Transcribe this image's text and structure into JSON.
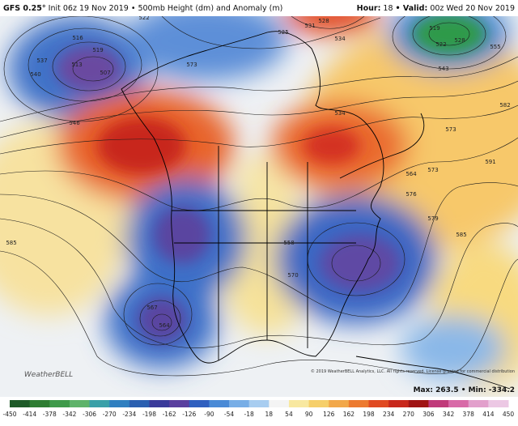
{
  "header": {
    "model": "GFS 0.25°",
    "init": "Init 06z 19 Nov 2019 • 500mb Height (dm) and Anomaly (m)",
    "hour_label": "Hour:",
    "hour": "18",
    "valid_label": "• Valid:",
    "valid": "00z Wed 20 Nov 2019"
  },
  "contour_labels": [
    "516",
    "519",
    "507",
    "513",
    "537",
    "540",
    "546",
    "522",
    "525",
    "528",
    "531",
    "534",
    "519",
    "522",
    "528",
    "543",
    "555",
    "573",
    "534",
    "576",
    "582",
    "591",
    "573",
    "564",
    "579",
    "585",
    "585",
    "567",
    "564",
    "558",
    "570",
    "573"
  ],
  "logo": "WeatherBELL",
  "copyright": "© 2019 WeatherBELL Analytics, LLC. All rights reserved. License granted for commercial distribution",
  "stats": "Max: 263.5 • Min: -334.2",
  "colorbar": {
    "ticks": [
      -450,
      -414,
      -378,
      -342,
      -306,
      -270,
      -234,
      -198,
      -162,
      -126,
      -90,
      -54,
      -18,
      18,
      54,
      90,
      126,
      162,
      198,
      234,
      270,
      306,
      342,
      378,
      414,
      450
    ],
    "colors": [
      "#1e5a28",
      "#2e7d32",
      "#3f9a4a",
      "#5fb36a",
      "#3aa0a8",
      "#2f7fc0",
      "#2a5fb0",
      "#3a3a9a",
      "#5a3f9e",
      "#2f5fbf",
      "#4a8ad6",
      "#78aee6",
      "#a8cdf0",
      "#f4f4f4",
      "#f8e8a0",
      "#f6cf6a",
      "#f2a84a",
      "#ec7a30",
      "#e04a22",
      "#c8281c",
      "#a01414",
      "#c03a7a",
      "#d86aa8",
      "#e2a0cc",
      "#ecc8e4"
    ]
  }
}
